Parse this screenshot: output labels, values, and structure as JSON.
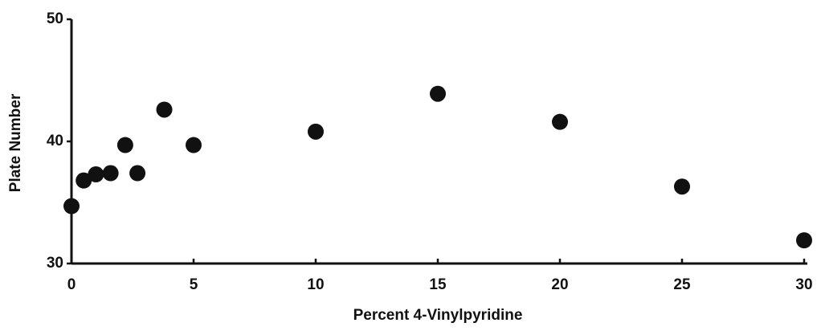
{
  "chart_data": {
    "type": "scatter",
    "xlabel": "Percent 4-Vinylpyridine",
    "ylabel": "Plate Number",
    "x": [
      0,
      0.5,
      1.0,
      1.6,
      2.2,
      2.7,
      3.8,
      5,
      10,
      15,
      20,
      25,
      30
    ],
    "values": [
      34.7,
      36.8,
      37.3,
      37.4,
      39.7,
      37.4,
      42.6,
      39.7,
      40.8,
      43.9,
      41.6,
      36.3,
      31.9
    ],
    "color": "#111111",
    "xlim": [
      0,
      30
    ],
    "xticks": [
      0,
      5,
      10,
      15,
      20,
      25,
      30
    ],
    "ylim": [
      30,
      50
    ],
    "yticks": [
      30,
      40,
      50
    ],
    "grid": false
  }
}
